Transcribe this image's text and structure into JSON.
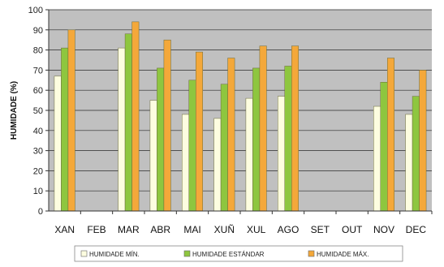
{
  "chart_data": {
    "type": "bar",
    "categories": [
      "XAN",
      "FEB",
      "MAR",
      "ABR",
      "MAI",
      "XUÑ",
      "XUL",
      "AGO",
      "SET",
      "OUT",
      "NOV",
      "DEC"
    ],
    "series": [
      {
        "name": "HUMIDADE MÍN.",
        "color": "#fdfde0",
        "values": [
          67,
          null,
          81,
          55,
          48,
          46,
          56,
          57,
          null,
          null,
          52,
          48
        ]
      },
      {
        "name": "HUMIDADE ESTÁNDAR",
        "color": "#8ec63f",
        "values": [
          81,
          null,
          88,
          71,
          65,
          63,
          71,
          72,
          null,
          null,
          64,
          57
        ]
      },
      {
        "name": "HUMIDADE MÁX.",
        "color": "#f4a83a",
        "values": [
          90,
          null,
          94,
          85,
          79,
          76,
          82,
          82,
          null,
          null,
          76,
          70
        ]
      }
    ],
    "title": "",
    "xlabel": "",
    "ylabel": "HUMIDADE (%)",
    "ylim": [
      0,
      100
    ],
    "yticks": [
      0,
      10,
      20,
      30,
      40,
      50,
      60,
      70,
      80,
      90,
      100
    ],
    "grid": true,
    "legend_position": "bottom",
    "plot_background": "#c0c0c0"
  }
}
